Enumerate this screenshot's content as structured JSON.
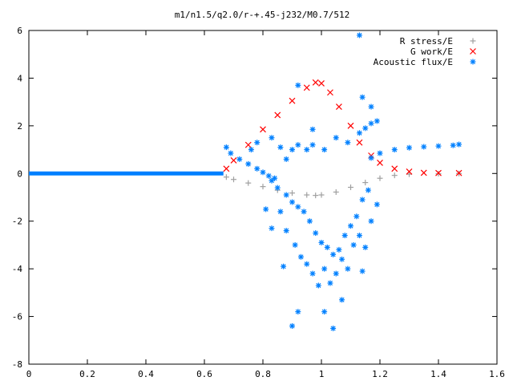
{
  "chart_data": {
    "type": "scatter",
    "title": "m1/n1.5/q2.0/r-+.45-j232/M0.7/512",
    "xlabel": "",
    "ylabel": "",
    "xlim": [
      0,
      1.6
    ],
    "ylim": [
      -8,
      6
    ],
    "x_ticks": [
      "0",
      "0.2",
      "0.4",
      "0.6",
      "0.8",
      "1",
      "1.2",
      "1.4",
      "1.6"
    ],
    "y_ticks": [
      "-8",
      "-6",
      "-4",
      "-2",
      "0",
      "2",
      "4",
      "6"
    ],
    "grid": false,
    "legend_position": "top-right",
    "series": [
      {
        "name": "R stress/E",
        "marker": "+",
        "color": "#a0a0a0",
        "points": [
          [
            0.675,
            -0.15
          ],
          [
            0.7,
            -0.25
          ],
          [
            0.75,
            -0.4
          ],
          [
            0.8,
            -0.55
          ],
          [
            0.85,
            -0.7
          ],
          [
            0.9,
            -0.82
          ],
          [
            0.95,
            -0.9
          ],
          [
            0.98,
            -0.92
          ],
          [
            1.0,
            -0.9
          ],
          [
            1.05,
            -0.78
          ],
          [
            1.1,
            -0.58
          ],
          [
            1.15,
            -0.38
          ],
          [
            1.2,
            -0.2
          ],
          [
            1.25,
            -0.08
          ],
          [
            1.3,
            -0.03
          ],
          [
            1.4,
            -0.01
          ],
          [
            1.47,
            0.0
          ]
        ]
      },
      {
        "name": "G work/E",
        "marker": "x",
        "color": "#ff0000",
        "points": [
          [
            0.675,
            0.2
          ],
          [
            0.7,
            0.55
          ],
          [
            0.75,
            1.2
          ],
          [
            0.8,
            1.85
          ],
          [
            0.85,
            2.45
          ],
          [
            0.9,
            3.05
          ],
          [
            0.95,
            3.6
          ],
          [
            0.98,
            3.82
          ],
          [
            1.0,
            3.78
          ],
          [
            1.03,
            3.4
          ],
          [
            1.06,
            2.8
          ],
          [
            1.1,
            2.0
          ],
          [
            1.13,
            1.3
          ],
          [
            1.17,
            0.75
          ],
          [
            1.2,
            0.45
          ],
          [
            1.25,
            0.2
          ],
          [
            1.3,
            0.08
          ],
          [
            1.35,
            0.03
          ],
          [
            1.4,
            0.02
          ],
          [
            1.47,
            0.02
          ]
        ]
      },
      {
        "name": "Acoustic flux/E",
        "marker": "*",
        "color": "#0080ff",
        "baseline": {
          "from": 0,
          "to": 0.665,
          "value": 0
        },
        "points": [
          [
            0.675,
            1.1
          ],
          [
            0.69,
            0.85
          ],
          [
            0.72,
            0.6
          ],
          [
            0.75,
            0.4
          ],
          [
            0.78,
            0.2
          ],
          [
            0.8,
            0.05
          ],
          [
            0.82,
            -0.1
          ],
          [
            0.84,
            -0.2
          ],
          [
            1.17,
            0.65
          ],
          [
            1.2,
            0.85
          ],
          [
            1.25,
            1.0
          ],
          [
            1.3,
            1.08
          ],
          [
            1.35,
            1.12
          ],
          [
            1.4,
            1.15
          ],
          [
            1.45,
            1.18
          ],
          [
            1.47,
            1.22
          ],
          [
            0.76,
            1.0
          ],
          [
            0.78,
            1.3
          ],
          [
            0.83,
            1.5
          ],
          [
            0.86,
            1.1
          ],
          [
            0.88,
            0.6
          ],
          [
            0.9,
            1.0
          ],
          [
            0.92,
            1.2
          ],
          [
            0.95,
            1.0
          ],
          [
            0.97,
            1.2
          ],
          [
            1.01,
            1.0
          ],
          [
            1.05,
            1.5
          ],
          [
            1.09,
            1.3
          ],
          [
            1.13,
            1.7
          ],
          [
            1.15,
            1.9
          ],
          [
            1.17,
            2.1
          ],
          [
            1.19,
            2.2
          ],
          [
            1.14,
            3.2
          ],
          [
            1.17,
            2.8
          ],
          [
            0.92,
            3.7
          ],
          [
            1.13,
            5.8
          ],
          [
            0.97,
            1.85
          ],
          [
            0.83,
            -0.3
          ],
          [
            0.85,
            -0.6
          ],
          [
            0.88,
            -0.9
          ],
          [
            0.9,
            -1.2
          ],
          [
            0.92,
            -1.4
          ],
          [
            0.94,
            -1.6
          ],
          [
            0.96,
            -2.0
          ],
          [
            0.98,
            -2.5
          ],
          [
            1.0,
            -2.9
          ],
          [
            1.02,
            -3.1
          ],
          [
            1.04,
            -3.4
          ],
          [
            1.06,
            -3.2
          ],
          [
            1.08,
            -2.6
          ],
          [
            1.1,
            -2.2
          ],
          [
            1.12,
            -1.8
          ],
          [
            1.14,
            -1.1
          ],
          [
            1.16,
            -0.7
          ],
          [
            0.81,
            -1.5
          ],
          [
            0.83,
            -2.3
          ],
          [
            0.86,
            -1.6
          ],
          [
            0.88,
            -2.4
          ],
          [
            0.91,
            -3.0
          ],
          [
            0.93,
            -3.5
          ],
          [
            0.95,
            -3.8
          ],
          [
            0.97,
            -4.2
          ],
          [
            0.99,
            -4.7
          ],
          [
            1.01,
            -4.0
          ],
          [
            1.03,
            -4.6
          ],
          [
            1.05,
            -4.2
          ],
          [
            1.07,
            -3.6
          ],
          [
            1.09,
            -4.0
          ],
          [
            1.11,
            -3.0
          ],
          [
            1.13,
            -2.6
          ],
          [
            1.15,
            -3.1
          ],
          [
            1.14,
            -4.1
          ],
          [
            1.19,
            -1.3
          ],
          [
            1.17,
            -2.0
          ],
          [
            0.87,
            -3.9
          ],
          [
            0.92,
            -5.8
          ],
          [
            1.01,
            -5.8
          ],
          [
            0.9,
            -6.4
          ],
          [
            1.04,
            -6.5
          ],
          [
            1.07,
            -5.3
          ]
        ]
      }
    ]
  }
}
